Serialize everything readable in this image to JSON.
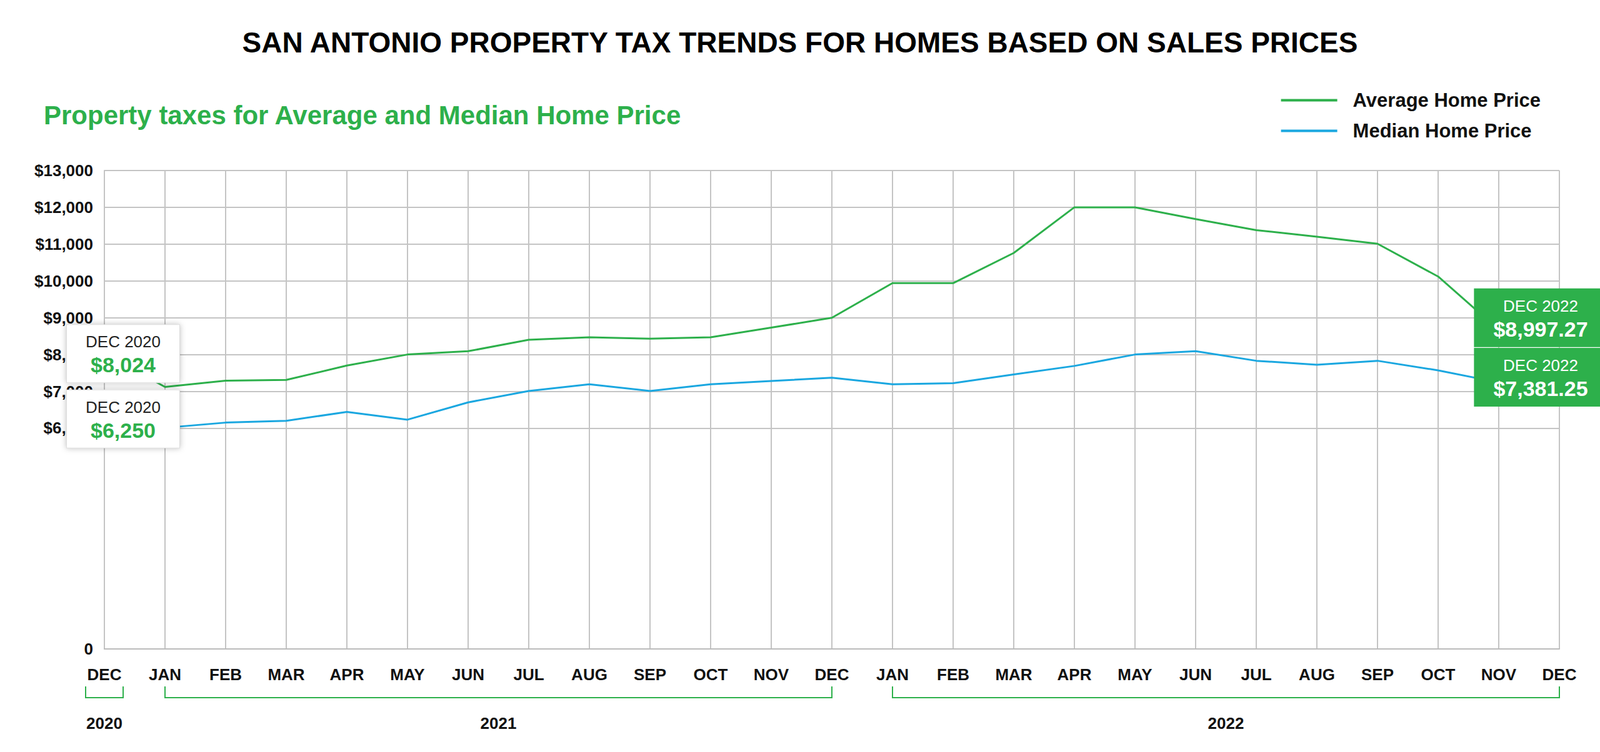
{
  "chart_data": {
    "type": "line",
    "title": "SAN ANTONIO PROPERTY TAX TRENDS FOR HOMES BASED ON SALES PRICES",
    "subtitle": "Property taxes for Average and Median Home Price",
    "categories": [
      "DEC",
      "JAN",
      "FEB",
      "MAR",
      "APR",
      "MAY",
      "JUN",
      "JUL",
      "AUG",
      "SEP",
      "OCT",
      "NOV",
      "DEC",
      "JAN",
      "FEB",
      "MAR",
      "APR",
      "MAY",
      "JUN",
      "JUL",
      "AUG",
      "SEP",
      "OCT",
      "NOV",
      "DEC"
    ],
    "x_groups": [
      {
        "label": "2020",
        "count": 1
      },
      {
        "label": "2021",
        "count": 12
      },
      {
        "label": "2022",
        "count": 12
      }
    ],
    "series": [
      {
        "name": "Average Home Price",
        "color": "#2db04b",
        "values": [
          8024,
          7120,
          7290,
          7310,
          7700,
          8000,
          8090,
          8400,
          8470,
          8430,
          8470,
          8730,
          9000,
          9940,
          9940,
          10760,
          12000,
          12000,
          11680,
          11380,
          11200,
          11010,
          10120,
          8670,
          8997.27
        ],
        "value_labels": [
          "$8,024",
          null,
          null,
          null,
          null,
          null,
          null,
          null,
          null,
          null,
          null,
          null,
          null,
          null,
          null,
          null,
          null,
          null,
          null,
          null,
          null,
          null,
          null,
          null,
          "$8,997.27"
        ],
        "value_notes": [
          "DEC 2020",
          null,
          null,
          null,
          null,
          null,
          null,
          null,
          null,
          null,
          null,
          null,
          null,
          null,
          null,
          null,
          null,
          null,
          null,
          null,
          null,
          null,
          null,
          null,
          "DEC 2022"
        ]
      },
      {
        "name": "Median Home Price",
        "color": "#1aa7e0",
        "values": [
          6250,
          6010,
          6150,
          6200,
          6440,
          6230,
          6700,
          7010,
          7190,
          7010,
          7190,
          7280,
          7370,
          7190,
          7220,
          7460,
          7690,
          8000,
          8090,
          7830,
          7720,
          7830,
          7570,
          7240,
          7381.25
        ],
        "value_labels": [
          "$6,250",
          null,
          null,
          null,
          null,
          null,
          null,
          null,
          null,
          null,
          null,
          null,
          null,
          null,
          null,
          null,
          null,
          null,
          null,
          null,
          null,
          null,
          null,
          null,
          "$7,381.25"
        ],
        "value_notes": [
          "DEC 2020",
          null,
          null,
          null,
          null,
          null,
          null,
          null,
          null,
          null,
          null,
          null,
          null,
          null,
          null,
          null,
          null,
          null,
          null,
          null,
          null,
          null,
          null,
          null,
          "DEC 2022"
        ]
      }
    ],
    "ylim": [
      0,
      13000
    ],
    "yticks": [
      0,
      {
        "value": 6000,
        "label": "$6,000"
      },
      {
        "value": 7000,
        "label": "$7,000"
      },
      {
        "value": 8000,
        "label": "$8,000"
      },
      {
        "value": 9000,
        "label": "$9,000"
      },
      {
        "value": 10000,
        "label": "$10,000"
      },
      {
        "value": 11000,
        "label": "$11,000"
      },
      {
        "value": 12000,
        "label": "$12,000"
      },
      {
        "value": 13000,
        "label": "$13,000"
      }
    ],
    "grid": true,
    "legend": "top right"
  }
}
